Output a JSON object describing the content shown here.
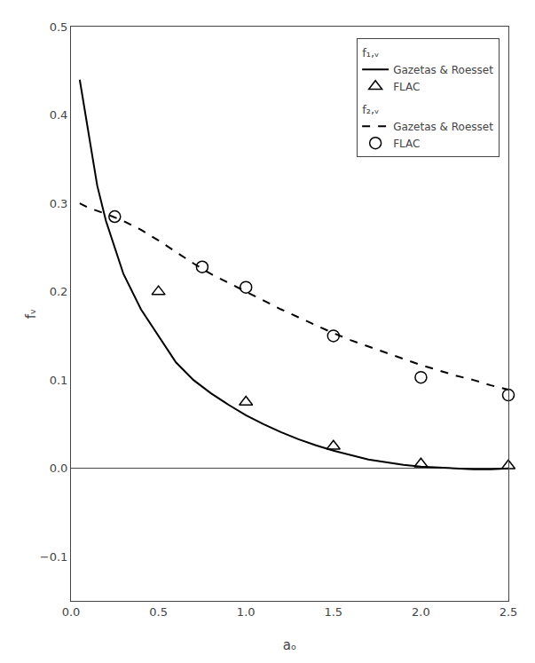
{
  "chart_data": {
    "type": "line",
    "xlabel": "aₒ",
    "ylabel": "fᵥ",
    "xlim": [
      0,
      2.5
    ],
    "ylim": [
      -0.15,
      0.5
    ],
    "xticks": [
      {
        "value": 0.0,
        "label": "0.0"
      },
      0.5,
      {
        "value": 1.0,
        "label": "1.0"
      },
      1.5,
      {
        "value": 2.0,
        "label": "2.0"
      },
      2.5
    ],
    "yticks": [
      {
        "value": -0.1,
        "label": "−0.1"
      },
      {
        "value": 0.0,
        "label": "0.0"
      },
      0.1,
      0.2,
      0.3,
      0.4,
      0.5
    ],
    "grid": false,
    "legend": "upper right",
    "series": [
      {
        "name": "Gazetas & Roesset",
        "group": "f₁,ᵥ",
        "type": "line",
        "line_style": "solid",
        "color": "#000000",
        "x": [
          0.05,
          0.1,
          0.15,
          0.2,
          0.3,
          0.4,
          0.5,
          0.6,
          0.7,
          0.8,
          0.9,
          1.0,
          1.1,
          1.2,
          1.3,
          1.4,
          1.5,
          1.6,
          1.7,
          1.8,
          1.9,
          2.0,
          2.1,
          2.2,
          2.3,
          2.4,
          2.5
        ],
        "values": [
          0.44,
          0.38,
          0.32,
          0.28,
          0.22,
          0.18,
          0.15,
          0.12,
          0.1,
          0.085,
          0.072,
          0.06,
          0.05,
          0.041,
          0.033,
          0.026,
          0.02,
          0.015,
          0.01,
          0.007,
          0.004,
          0.002,
          0.001,
          0.0,
          -0.001,
          -0.001,
          0.0
        ]
      },
      {
        "name": "Gazetas & Roesset",
        "group": "f₂,ᵥ",
        "type": "line",
        "line_style": "dashed",
        "color": "#000000",
        "x": [
          0.05,
          0.1,
          0.2,
          0.3,
          0.4,
          0.5,
          0.6,
          0.7,
          0.8,
          0.9,
          1.0,
          1.1,
          1.2,
          1.3,
          1.4,
          1.5,
          1.6,
          1.7,
          1.8,
          1.9,
          2.0,
          2.1,
          2.2,
          2.3,
          2.4,
          2.5
        ],
        "values": [
          0.3,
          0.295,
          0.288,
          0.28,
          0.27,
          0.258,
          0.245,
          0.232,
          0.22,
          0.21,
          0.2,
          0.19,
          0.18,
          0.171,
          0.162,
          0.153,
          0.145,
          0.138,
          0.131,
          0.124,
          0.117,
          0.111,
          0.105,
          0.1,
          0.094,
          0.089
        ]
      },
      {
        "name": "FLAC",
        "group": "f₁,ᵥ",
        "type": "scatter",
        "marker": "triangle",
        "color": "#000000",
        "x": [
          0.5,
          1.0,
          1.5,
          2.0,
          2.5
        ],
        "values": [
          0.2,
          0.075,
          0.025,
          0.005,
          0.003
        ]
      },
      {
        "name": "FLAC",
        "group": "f₂,ᵥ",
        "type": "scatter",
        "marker": "circle",
        "color": "#000000",
        "x": [
          0.25,
          0.75,
          1.0,
          1.5,
          2.0,
          2.5
        ],
        "values": [
          0.285,
          0.228,
          0.205,
          0.15,
          0.103,
          0.083
        ]
      }
    ]
  }
}
